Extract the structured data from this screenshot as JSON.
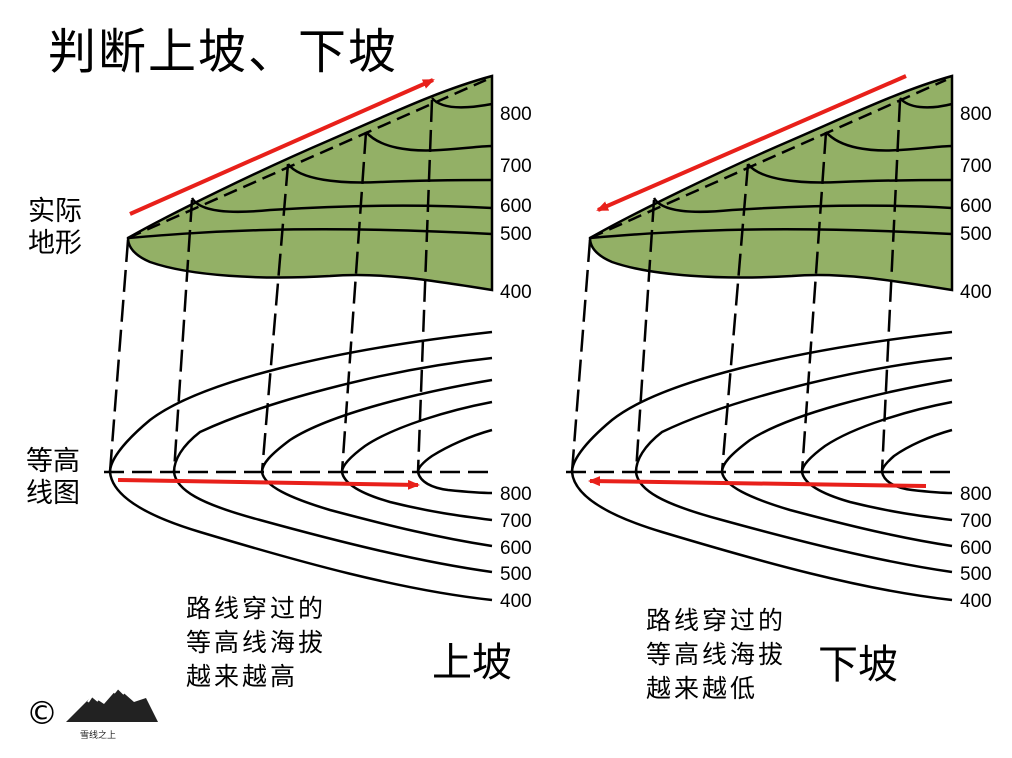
{
  "title": "判断上坡、下坡",
  "labels": {
    "terrain": [
      "实际",
      "地形"
    ],
    "contour": [
      "等高",
      "线图"
    ]
  },
  "elevations_terrain": [
    "800",
    "700",
    "600",
    "500",
    "400"
  ],
  "elevations_contour": [
    "800",
    "700",
    "600",
    "500",
    "400"
  ],
  "left_panel": {
    "caption": [
      "路线穿过的",
      "等高线海拔",
      "越来越高"
    ],
    "verdict": "上坡"
  },
  "right_panel": {
    "caption": [
      "路线穿过的",
      "等高线海拔",
      "越来越低"
    ],
    "verdict": "下坡"
  },
  "colors": {
    "terrain_fill": "#93b066",
    "arrow": "#e8201a",
    "line": "#000000"
  },
  "copyright_symbol": "©",
  "logo_text": "雪线之上"
}
